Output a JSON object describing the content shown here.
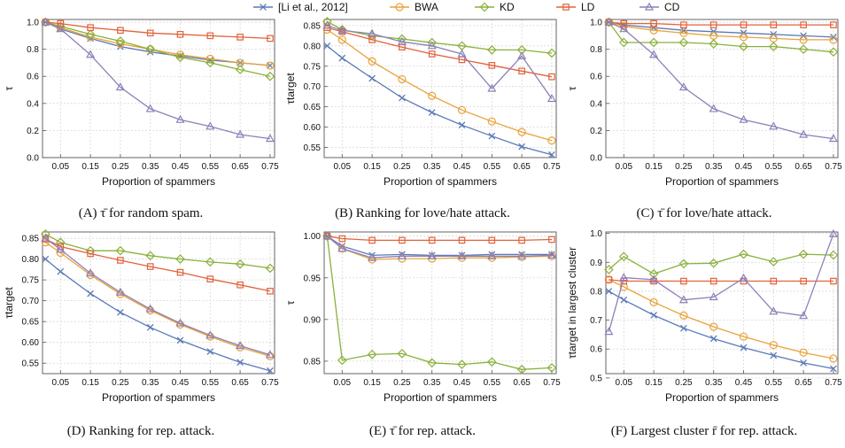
{
  "legend": [
    {
      "key": "li",
      "label": "[Li et al., 2012]",
      "color": "#5b79b8",
      "marker": "x"
    },
    {
      "key": "bwa",
      "label": "BWA",
      "color": "#e8a33a",
      "marker": "circle"
    },
    {
      "key": "kd",
      "label": "KD",
      "color": "#8ab13a",
      "marker": "diamond"
    },
    {
      "key": "ld",
      "label": "LD",
      "color": "#e2623b",
      "marker": "square"
    },
    {
      "key": "cd",
      "label": "CD",
      "color": "#8e7fb8",
      "marker": "triangle"
    }
  ],
  "chart_data": [
    {
      "type": "line",
      "caption": "(A) τ̄ for random spam.",
      "xlabel": "Proportion of spammers",
      "ylabel": "τ",
      "x": [
        0.0,
        0.05,
        0.15,
        0.25,
        0.35,
        0.45,
        0.55,
        0.65,
        0.75
      ],
      "xticks": [
        0.05,
        0.15,
        0.25,
        0.35,
        0.45,
        0.55,
        0.65,
        0.75
      ],
      "yticks": [
        0.0,
        0.2,
        0.4,
        0.6,
        0.8,
        1.0
      ],
      "ylim": [
        0.0,
        1.02
      ],
      "series": [
        {
          "key": "li",
          "values": [
            1.0,
            0.95,
            0.88,
            0.82,
            0.78,
            0.75,
            0.72,
            0.7,
            0.68
          ]
        },
        {
          "key": "bwa",
          "values": [
            1.0,
            0.96,
            0.89,
            0.84,
            0.8,
            0.76,
            0.73,
            0.7,
            0.68
          ]
        },
        {
          "key": "kd",
          "values": [
            1.0,
            0.97,
            0.91,
            0.86,
            0.8,
            0.74,
            0.7,
            0.65,
            0.6
          ]
        },
        {
          "key": "ld",
          "values": [
            1.0,
            0.99,
            0.96,
            0.94,
            0.92,
            0.91,
            0.9,
            0.89,
            0.88
          ]
        },
        {
          "key": "cd",
          "values": [
            1.0,
            0.95,
            0.76,
            0.52,
            0.36,
            0.28,
            0.23,
            0.17,
            0.14
          ]
        }
      ]
    },
    {
      "type": "line",
      "caption": "(B) Ranking for love/hate attack.",
      "xlabel": "Proportion of spammers",
      "ylabel": "τtarget",
      "x": [
        0.0,
        0.05,
        0.15,
        0.25,
        0.35,
        0.45,
        0.55,
        0.65,
        0.75
      ],
      "xticks": [
        0.05,
        0.15,
        0.25,
        0.35,
        0.45,
        0.55,
        0.65,
        0.75
      ],
      "yticks": [
        0.55,
        0.6,
        0.65,
        0.7,
        0.75,
        0.8,
        0.85
      ],
      "ylim": [
        0.525,
        0.865
      ],
      "series": [
        {
          "key": "li",
          "values": [
            0.8,
            0.77,
            0.72,
            0.672,
            0.636,
            0.605,
            0.578,
            0.552,
            0.532
          ]
        },
        {
          "key": "bwa",
          "values": [
            0.84,
            0.815,
            0.762,
            0.718,
            0.677,
            0.642,
            0.614,
            0.588,
            0.567
          ]
        },
        {
          "key": "kd",
          "values": [
            0.86,
            0.84,
            0.825,
            0.817,
            0.808,
            0.8,
            0.79,
            0.79,
            0.782
          ]
        },
        {
          "key": "ld",
          "values": [
            0.845,
            0.835,
            0.815,
            0.797,
            0.78,
            0.766,
            0.752,
            0.738,
            0.724
          ]
        },
        {
          "key": "cd",
          "values": [
            0.85,
            0.838,
            0.83,
            0.81,
            0.8,
            0.78,
            0.695,
            0.775,
            0.67
          ]
        }
      ]
    },
    {
      "type": "line",
      "caption": "(C) τ̄ for love/hate attack.",
      "xlabel": "Proportion of spammers",
      "ylabel": "τ",
      "x": [
        0.0,
        0.05,
        0.15,
        0.25,
        0.35,
        0.45,
        0.55,
        0.65,
        0.75
      ],
      "xticks": [
        0.05,
        0.15,
        0.25,
        0.35,
        0.45,
        0.55,
        0.65,
        0.75
      ],
      "yticks": [
        0.0,
        0.2,
        0.4,
        0.6,
        0.8,
        1.0
      ],
      "ylim": [
        0.0,
        1.02
      ],
      "series": [
        {
          "key": "li",
          "values": [
            1.0,
            0.98,
            0.96,
            0.94,
            0.93,
            0.92,
            0.91,
            0.9,
            0.89
          ]
        },
        {
          "key": "bwa",
          "values": [
            1.0,
            0.97,
            0.94,
            0.92,
            0.9,
            0.89,
            0.88,
            0.87,
            0.87
          ]
        },
        {
          "key": "kd",
          "values": [
            1.0,
            0.85,
            0.85,
            0.85,
            0.84,
            0.82,
            0.82,
            0.8,
            0.78
          ]
        },
        {
          "key": "ld",
          "values": [
            1.0,
            0.99,
            0.99,
            0.98,
            0.98,
            0.98,
            0.98,
            0.98,
            0.98
          ]
        },
        {
          "key": "cd",
          "values": [
            1.0,
            0.95,
            0.76,
            0.52,
            0.36,
            0.28,
            0.23,
            0.17,
            0.14
          ]
        }
      ]
    },
    {
      "type": "line",
      "caption": "(D) Ranking for rep. attack.",
      "xlabel": "Proportion of spammers",
      "ylabel": "τtarget",
      "x": [
        0.0,
        0.05,
        0.15,
        0.25,
        0.35,
        0.45,
        0.55,
        0.65,
        0.75
      ],
      "xticks": [
        0.05,
        0.15,
        0.25,
        0.35,
        0.45,
        0.55,
        0.65,
        0.75
      ],
      "yticks": [
        0.55,
        0.6,
        0.65,
        0.7,
        0.75,
        0.8,
        0.85
      ],
      "ylim": [
        0.525,
        0.865
      ],
      "series": [
        {
          "key": "li",
          "values": [
            0.8,
            0.77,
            0.717,
            0.672,
            0.636,
            0.605,
            0.578,
            0.552,
            0.532
          ]
        },
        {
          "key": "bwa",
          "values": [
            0.84,
            0.815,
            0.762,
            0.716,
            0.677,
            0.643,
            0.614,
            0.588,
            0.567
          ]
        },
        {
          "key": "kd",
          "values": [
            0.86,
            0.84,
            0.82,
            0.82,
            0.808,
            0.8,
            0.793,
            0.788,
            0.778
          ]
        },
        {
          "key": "ld",
          "values": [
            0.848,
            0.83,
            0.813,
            0.797,
            0.782,
            0.768,
            0.752,
            0.738,
            0.723
          ]
        },
        {
          "key": "cd",
          "values": [
            0.85,
            0.823,
            0.766,
            0.72,
            0.68,
            0.646,
            0.617,
            0.592,
            0.57
          ]
        }
      ]
    },
    {
      "type": "line",
      "caption": "(E) τ̄ for rep. attack.",
      "xlabel": "Proportion of spammers",
      "ylabel": "τ",
      "x": [
        0.0,
        0.05,
        0.15,
        0.25,
        0.35,
        0.45,
        0.55,
        0.65,
        0.75
      ],
      "xticks": [
        0.05,
        0.15,
        0.25,
        0.35,
        0.45,
        0.55,
        0.65,
        0.75
      ],
      "yticks": [
        0.85,
        0.9,
        0.95,
        1.0
      ],
      "ylim": [
        0.835,
        1.005
      ],
      "series": [
        {
          "key": "li",
          "values": [
            1.0,
            0.988,
            0.977,
            0.978,
            0.977,
            0.977,
            0.978,
            0.978,
            0.978
          ]
        },
        {
          "key": "bwa",
          "values": [
            1.0,
            0.985,
            0.972,
            0.973,
            0.973,
            0.974,
            0.974,
            0.975,
            0.976
          ]
        },
        {
          "key": "kd",
          "values": [
            1.0,
            0.851,
            0.858,
            0.859,
            0.848,
            0.846,
            0.849,
            0.84,
            0.842
          ]
        },
        {
          "key": "ld",
          "values": [
            1.0,
            0.997,
            0.995,
            0.995,
            0.995,
            0.995,
            0.995,
            0.995,
            0.996
          ]
        },
        {
          "key": "cd",
          "values": [
            1.0,
            0.985,
            0.974,
            0.976,
            0.976,
            0.976,
            0.976,
            0.976,
            0.977
          ]
        }
      ]
    },
    {
      "type": "line",
      "caption": "(F) Largest cluster r̄ for rep. attack.",
      "xlabel": "Proportion of spammers",
      "ylabel": "τtarget in largest cluster",
      "x": [
        0.0,
        0.05,
        0.15,
        0.25,
        0.35,
        0.45,
        0.55,
        0.65,
        0.75
      ],
      "xticks": [
        0.05,
        0.15,
        0.25,
        0.35,
        0.45,
        0.55,
        0.65,
        0.75
      ],
      "yticks": [
        0.5,
        0.6,
        0.7,
        0.8,
        0.9,
        1.0
      ],
      "ylim": [
        0.515,
        1.005
      ],
      "series": [
        {
          "key": "li",
          "values": [
            0.8,
            0.77,
            0.717,
            0.672,
            0.636,
            0.605,
            0.578,
            0.552,
            0.532
          ]
        },
        {
          "key": "bwa",
          "values": [
            0.84,
            0.815,
            0.762,
            0.716,
            0.677,
            0.643,
            0.614,
            0.588,
            0.567
          ]
        },
        {
          "key": "kd",
          "values": [
            0.875,
            0.92,
            0.86,
            0.895,
            0.897,
            0.928,
            0.902,
            0.928,
            0.925
          ]
        },
        {
          "key": "ld",
          "values": [
            0.84,
            0.835,
            0.835,
            0.835,
            0.835,
            0.835,
            0.835,
            0.835,
            0.835
          ]
        },
        {
          "key": "cd",
          "values": [
            0.66,
            0.847,
            0.84,
            0.77,
            0.78,
            0.845,
            0.73,
            0.715,
            0.998
          ]
        }
      ]
    }
  ]
}
